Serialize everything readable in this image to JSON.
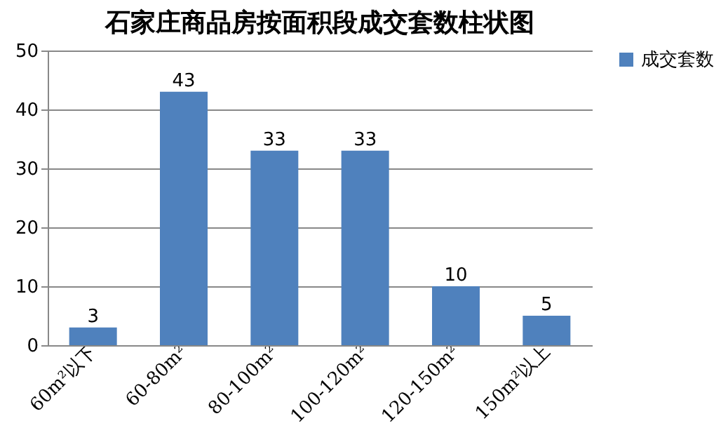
{
  "chart_data": {
    "type": "bar",
    "title": "石家庄商品房按面积段成交套数柱状图",
    "categories": [
      "60m²以下",
      "60-80m²",
      "80-100m²",
      "100-120m²",
      "120-150m²",
      "150m²以上"
    ],
    "series": [
      {
        "name": "成交套数",
        "color": "#4f81bd",
        "values": [
          3,
          43,
          33,
          33,
          10,
          5
        ]
      }
    ],
    "ylim": [
      0,
      50
    ],
    "yticks": [
      0,
      10,
      20,
      30,
      40,
      50
    ],
    "grid": "y",
    "legend": "right",
    "data_labels": true
  }
}
